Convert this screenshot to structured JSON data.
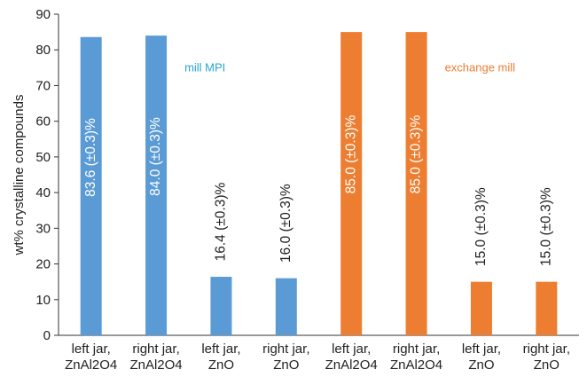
{
  "chart_data": {
    "type": "bar",
    "categories": [
      [
        "left jar,",
        "ZnAl2O4"
      ],
      [
        "right jar,",
        "ZnAl2O4"
      ],
      [
        "left jar,",
        "ZnO"
      ],
      [
        "right jar,",
        "ZnO"
      ],
      [
        "left jar,",
        "ZnAl2O4"
      ],
      [
        "right jar,",
        "ZnAl2O4"
      ],
      [
        "left jar,",
        "ZnO"
      ],
      [
        "right jar,",
        "ZnO"
      ]
    ],
    "values": [
      83.6,
      84.0,
      16.4,
      16.0,
      85.0,
      85.0,
      15.0,
      15.0
    ],
    "data_labels": [
      "83.6 (±0.3)%",
      "84.0 (±0.3)%",
      "16.4 (±0.3)%",
      "16.0 (±0.3)%",
      "85.0 (±0.3)%",
      "85.0 (±0.3)%",
      "15.0 (±0.3)%",
      "15.0 (±0.3)%"
    ],
    "bar_colors": [
      "#5b9bd5",
      "#5b9bd5",
      "#5b9bd5",
      "#5b9bd5",
      "#ed7d31",
      "#ed7d31",
      "#ed7d31",
      "#ed7d31"
    ],
    "groups": [
      {
        "annotation": "mill MPI",
        "color": "#29a3d6"
      },
      {
        "annotation": "exchange mill",
        "color": "#ed7d31"
      }
    ],
    "xlabel": "",
    "ylabel": "wt% crystalline compounds",
    "ylim": [
      0,
      90
    ],
    "yticks": [
      0,
      10,
      20,
      30,
      40,
      50,
      60,
      70,
      80,
      90
    ],
    "grid": false
  }
}
